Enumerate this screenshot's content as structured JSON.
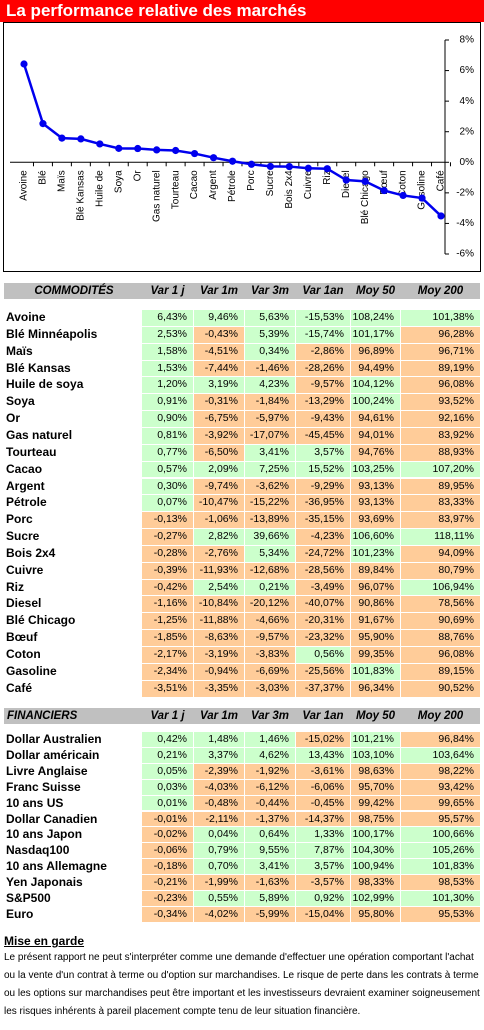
{
  "header": {
    "title": "La performance relative des marchés"
  },
  "chart_data": {
    "type": "line",
    "categories": [
      "Avoine",
      "Blé",
      "Maïs",
      "Blé Kansas",
      "Huile de",
      "Soya",
      "Or",
      "Gas naturel",
      "Tourteau",
      "Cacao",
      "Argent",
      "Pétrole",
      "Porc",
      "Sucre",
      "Bois 2x4",
      "Cuivre",
      "Riz",
      "Diesel",
      "Blé Chicago",
      "Bœuf",
      "Coton",
      "Gasoline",
      "Café"
    ],
    "values": [
      6.43,
      2.53,
      1.58,
      1.53,
      1.2,
      0.91,
      0.9,
      0.81,
      0.77,
      0.57,
      0.3,
      0.07,
      -0.13,
      -0.27,
      -0.28,
      -0.39,
      -0.42,
      -1.16,
      -1.25,
      -1.85,
      -2.17,
      -2.34,
      -3.51
    ],
    "color": "#0000ee",
    "ylim": [
      -6,
      8
    ],
    "yticks": [
      {
        "value": 8,
        "label": "8%"
      },
      {
        "value": 6,
        "label": "6%"
      },
      {
        "value": 4,
        "label": "4%"
      },
      {
        "value": 2,
        "label": "2%"
      },
      {
        "value": 0,
        "label": "0%"
      },
      {
        "value": -2,
        "label": "-2%"
      },
      {
        "value": -4,
        "label": "-4%"
      },
      {
        "value": -6,
        "label": "-6%"
      }
    ]
  },
  "cell_colors": {
    "green": "#ccffcc",
    "other": "#ffcc99",
    "header": "#c0c0c0"
  },
  "commodities": {
    "columns": [
      "COMMODITÉS",
      "Var 1 j",
      "Var 1m",
      "Var 3m",
      "Var 1an",
      "Moy 50",
      "Moy 200"
    ],
    "rows": [
      [
        "Avoine",
        "6,43%",
        "9,46%",
        "5,63%",
        "-15,53%",
        "108,24%",
        "101,38%"
      ],
      [
        "Blé Minnéapolis",
        "2,53%",
        "-0,43%",
        "5,39%",
        "-15,74%",
        "101,17%",
        "96,28%"
      ],
      [
        "Maïs",
        "1,58%",
        "-4,51%",
        "0,34%",
        "-2,86%",
        "96,89%",
        "96,71%"
      ],
      [
        "Blé Kansas",
        "1,53%",
        "-7,44%",
        "-1,46%",
        "-28,26%",
        "94,49%",
        "89,19%"
      ],
      [
        "Huile de soya",
        "1,20%",
        "3,19%",
        "4,23%",
        "-9,57%",
        "104,12%",
        "96,08%"
      ],
      [
        "Soya",
        "0,91%",
        "-0,31%",
        "-1,84%",
        "-13,29%",
        "100,24%",
        "93,52%"
      ],
      [
        "Or",
        "0,90%",
        "-6,75%",
        "-5,97%",
        "-9,43%",
        "94,61%",
        "92,16%"
      ],
      [
        "Gas naturel",
        "0,81%",
        "-3,92%",
        "-17,07%",
        "-45,45%",
        "94,01%",
        "83,92%"
      ],
      [
        "Tourteau",
        "0,77%",
        "-6,50%",
        "3,41%",
        "3,57%",
        "94,76%",
        "88,93%"
      ],
      [
        "Cacao",
        "0,57%",
        "2,09%",
        "7,25%",
        "15,52%",
        "103,25%",
        "107,20%"
      ],
      [
        "Argent",
        "0,30%",
        "-9,74%",
        "-3,62%",
        "-9,29%",
        "93,13%",
        "89,95%"
      ],
      [
        "Pétrole",
        "0,07%",
        "-10,47%",
        "-15,22%",
        "-36,95%",
        "93,13%",
        "83,33%"
      ],
      [
        "Porc",
        "-0,13%",
        "-1,06%",
        "-13,89%",
        "-35,15%",
        "93,69%",
        "83,97%"
      ],
      [
        "Sucre",
        "-0,27%",
        "2,82%",
        "39,66%",
        "-4,23%",
        "106,60%",
        "118,11%"
      ],
      [
        "Bois 2x4",
        "-0,28%",
        "-2,76%",
        "5,34%",
        "-24,72%",
        "101,23%",
        "94,09%"
      ],
      [
        "Cuivre",
        "-0,39%",
        "-11,93%",
        "-12,68%",
        "-28,56%",
        "89,84%",
        "80,79%"
      ],
      [
        "Riz",
        "-0,42%",
        "2,54%",
        "0,21%",
        "-3,49%",
        "96,07%",
        "106,94%"
      ],
      [
        "Diesel",
        "-1,16%",
        "-10,84%",
        "-20,12%",
        "-40,07%",
        "90,86%",
        "78,56%"
      ],
      [
        "Blé Chicago",
        "-1,25%",
        "-11,88%",
        "-4,66%",
        "-20,31%",
        "91,67%",
        "90,69%"
      ],
      [
        "Bœuf",
        "-1,85%",
        "-8,63%",
        "-9,57%",
        "-23,32%",
        "95,90%",
        "88,76%"
      ],
      [
        "Coton",
        "-2,17%",
        "-3,19%",
        "-3,83%",
        "0,56%",
        "99,35%",
        "96,08%"
      ],
      [
        "Gasoline",
        "-2,34%",
        "-0,94%",
        "-6,69%",
        "-25,56%",
        "101,83%",
        "89,15%"
      ],
      [
        "Café",
        "-3,51%",
        "-3,35%",
        "-3,03%",
        "-37,37%",
        "96,34%",
        "90,52%"
      ]
    ],
    "green_cells": [
      [
        0,
        1,
        2,
        3,
        4,
        5
      ],
      [
        0,
        2,
        3,
        4
      ],
      [
        0,
        2
      ],
      [
        0
      ],
      [
        0,
        1,
        2,
        4
      ],
      [
        0,
        4
      ],
      [
        0
      ],
      [
        0
      ],
      [
        0,
        2,
        3
      ],
      [
        0,
        1,
        2,
        3,
        4,
        5
      ],
      [
        0
      ],
      [
        0
      ],
      [],
      [
        1,
        2,
        4,
        5
      ],
      [
        2,
        4
      ],
      [],
      [
        1,
        2,
        5
      ],
      [],
      [],
      [],
      [
        3
      ],
      [
        4
      ],
      []
    ]
  },
  "financiers": {
    "columns": [
      "FINANCIERS",
      "Var 1 j",
      "Var 1m",
      "Var 3m",
      "Var 1an",
      "Moy 50",
      "Moy 200"
    ],
    "rows": [
      [
        "Dollar Australien",
        "0,42%",
        "1,48%",
        "1,46%",
        "-15,02%",
        "101,21%",
        "96,84%"
      ],
      [
        "Dollar américain",
        "0,21%",
        "3,37%",
        "4,62%",
        "13,43%",
        "103,10%",
        "103,64%"
      ],
      [
        "Livre Anglaise",
        "0,05%",
        "-2,39%",
        "-1,92%",
        "-3,61%",
        "98,63%",
        "98,22%"
      ],
      [
        "Franc Suisse",
        "0,03%",
        "-4,03%",
        "-6,12%",
        "-6,06%",
        "95,70%",
        "93,42%"
      ],
      [
        "10 ans US",
        "0,01%",
        "-0,48%",
        "-0,44%",
        "-0,45%",
        "99,42%",
        "99,65%"
      ],
      [
        "Dollar Canadien",
        "-0,01%",
        "-2,11%",
        "-1,37%",
        "-14,37%",
        "98,75%",
        "95,57%"
      ],
      [
        "10 ans Japon",
        "-0,02%",
        "0,04%",
        "0,64%",
        "1,33%",
        "100,17%",
        "100,66%"
      ],
      [
        "Nasdaq100",
        "-0,06%",
        "0,79%",
        "9,55%",
        "7,87%",
        "104,30%",
        "105,26%"
      ],
      [
        "10 ans Allemagne",
        "-0,18%",
        "0,70%",
        "3,41%",
        "3,57%",
        "100,94%",
        "101,83%"
      ],
      [
        "Yen Japonais",
        "-0,21%",
        "-1,99%",
        "-1,63%",
        "-3,57%",
        "98,33%",
        "98,53%"
      ],
      [
        "S&P500",
        "-0,23%",
        "0,55%",
        "5,89%",
        "0,92%",
        "102,99%",
        "101,30%"
      ],
      [
        "Euro",
        "-0,34%",
        "-4,02%",
        "-5,99%",
        "-15,04%",
        "95,80%",
        "95,53%"
      ]
    ],
    "green_cells": [
      [
        0,
        1,
        2,
        4
      ],
      [
        0,
        1,
        2,
        3,
        4,
        5
      ],
      [
        0
      ],
      [
        0
      ],
      [
        0
      ],
      [],
      [
        1,
        2,
        3,
        4,
        5
      ],
      [
        1,
        2,
        3,
        4,
        5
      ],
      [
        1,
        2,
        3,
        4,
        5
      ],
      [],
      [
        1,
        2,
        3,
        4,
        5
      ],
      []
    ]
  },
  "disclaimer": {
    "title": "Mise en garde",
    "text": "Le présent rapport ne peut s'interpréter comme une demande d'effectuer une opération comportant l'achat ou la vente d'un contrat à terme ou d'option sur marchandises. Le risque de perte dans les contrats à terme ou les options sur marchandises peut être important et les investisseurs devraient examiner soigneusement les risques inhérents à pareil placement compte tenu de leur situation financière."
  }
}
